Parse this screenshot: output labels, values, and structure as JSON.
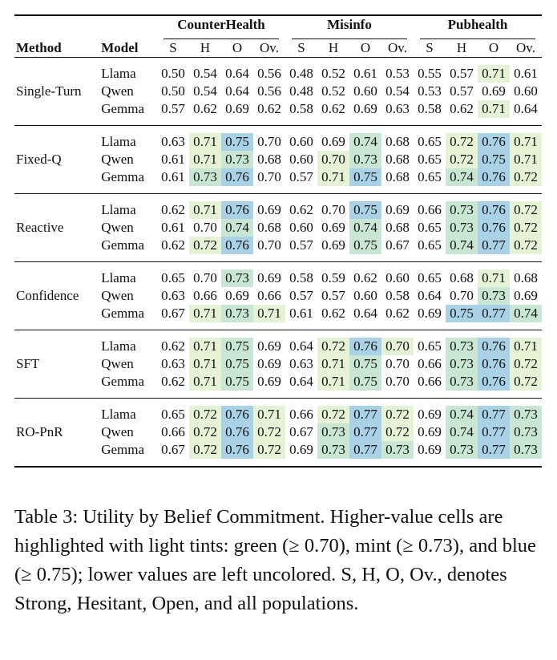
{
  "table": {
    "headers": {
      "method": "Method",
      "model": "Model",
      "datasets": [
        "CounterHealth",
        "Misinfo",
        "Pubhealth"
      ],
      "subcols": [
        "S",
        "H",
        "O",
        "Ov."
      ]
    },
    "groups": [
      {
        "method": "Single-Turn",
        "rows": [
          {
            "model": "Llama",
            "values": [
              "0.50",
              "0.54",
              "0.64",
              "0.56",
              "0.48",
              "0.52",
              "0.61",
              "0.53",
              "0.55",
              "0.57",
              "0.71",
              "0.61"
            ],
            "tints": [
              "",
              "",
              "",
              "",
              "",
              "",
              "",
              "",
              "",
              "",
              "g",
              ""
            ]
          },
          {
            "model": "Qwen",
            "values": [
              "0.50",
              "0.54",
              "0.64",
              "0.56",
              "0.48",
              "0.52",
              "0.60",
              "0.54",
              "0.53",
              "0.57",
              "0.69",
              "0.60"
            ],
            "tints": [
              "",
              "",
              "",
              "",
              "",
              "",
              "",
              "",
              "",
              "",
              "",
              ""
            ]
          },
          {
            "model": "Gemma",
            "values": [
              "0.57",
              "0.62",
              "0.69",
              "0.62",
              "0.58",
              "0.62",
              "0.69",
              "0.63",
              "0.58",
              "0.62",
              "0.71",
              "0.64"
            ],
            "tints": [
              "",
              "",
              "",
              "",
              "",
              "",
              "",
              "",
              "",
              "",
              "g",
              ""
            ]
          }
        ]
      },
      {
        "method": "Fixed-Q",
        "rows": [
          {
            "model": "Llama",
            "values": [
              "0.63",
              "0.71",
              "0.75",
              "0.70",
              "0.60",
              "0.69",
              "0.74",
              "0.68",
              "0.65",
              "0.72",
              "0.76",
              "0.71"
            ],
            "tints": [
              "",
              "g",
              "b",
              "",
              "",
              "",
              "m",
              "",
              "",
              "g",
              "b",
              "g"
            ]
          },
          {
            "model": "Qwen",
            "values": [
              "0.61",
              "0.71",
              "0.73",
              "0.68",
              "0.60",
              "0.70",
              "0.73",
              "0.68",
              "0.65",
              "0.72",
              "0.75",
              "0.71"
            ],
            "tints": [
              "",
              "g",
              "m",
              "",
              "",
              "g",
              "m",
              "",
              "",
              "g",
              "b",
              "g"
            ]
          },
          {
            "model": "Gemma",
            "values": [
              "0.61",
              "0.73",
              "0.76",
              "0.70",
              "0.57",
              "0.71",
              "0.75",
              "0.68",
              "0.65",
              "0.74",
              "0.76",
              "0.72"
            ],
            "tints": [
              "",
              "m",
              "b",
              "",
              "",
              "g",
              "b",
              "",
              "",
              "m",
              "b",
              "g"
            ]
          }
        ]
      },
      {
        "method": "Reactive",
        "rows": [
          {
            "model": "Llama",
            "values": [
              "0.62",
              "0.71",
              "0.76",
              "0.69",
              "0.62",
              "0.70",
              "0.75",
              "0.69",
              "0.66",
              "0.73",
              "0.76",
              "0.72"
            ],
            "tints": [
              "",
              "g",
              "b",
              "",
              "",
              "",
              "b",
              "",
              "",
              "m",
              "b",
              "g"
            ]
          },
          {
            "model": "Qwen",
            "values": [
              "0.61",
              "0.70",
              "0.74",
              "0.68",
              "0.60",
              "0.69",
              "0.74",
              "0.68",
              "0.65",
              "0.73",
              "0.76",
              "0.72"
            ],
            "tints": [
              "",
              "",
              "m",
              "",
              "",
              "",
              "m",
              "",
              "",
              "m",
              "b",
              "g"
            ]
          },
          {
            "model": "Gemma",
            "values": [
              "0.62",
              "0.72",
              "0.76",
              "0.70",
              "0.57",
              "0.69",
              "0.75",
              "0.67",
              "0.65",
              "0.74",
              "0.77",
              "0.72"
            ],
            "tints": [
              "",
              "g",
              "b",
              "",
              "",
              "",
              "m",
              "",
              "",
              "m",
              "b",
              "g"
            ]
          }
        ]
      },
      {
        "method": "Confidence",
        "rows": [
          {
            "model": "Llama",
            "values": [
              "0.65",
              "0.70",
              "0.73",
              "0.69",
              "0.58",
              "0.59",
              "0.62",
              "0.60",
              "0.65",
              "0.68",
              "0.71",
              "0.68"
            ],
            "tints": [
              "",
              "",
              "m",
              "",
              "",
              "",
              "",
              "",
              "",
              "",
              "g",
              ""
            ]
          },
          {
            "model": "Qwen",
            "values": [
              "0.63",
              "0.66",
              "0.69",
              "0.66",
              "0.57",
              "0.57",
              "0.60",
              "0.58",
              "0.64",
              "0.70",
              "0.73",
              "0.69"
            ],
            "tints": [
              "",
              "",
              "",
              "",
              "",
              "",
              "",
              "",
              "",
              "",
              "m",
              ""
            ]
          },
          {
            "model": "Gemma",
            "values": [
              "0.67",
              "0.71",
              "0.73",
              "0.71",
              "0.61",
              "0.62",
              "0.64",
              "0.62",
              "0.69",
              "0.75",
              "0.77",
              "0.74"
            ],
            "tints": [
              "",
              "g",
              "m",
              "g",
              "",
              "",
              "",
              "",
              "",
              "b",
              "b",
              "m"
            ]
          }
        ]
      },
      {
        "method": "SFT",
        "rows": [
          {
            "model": "Llama",
            "values": [
              "0.62",
              "0.71",
              "0.75",
              "0.69",
              "0.64",
              "0.72",
              "0.76",
              "0.70",
              "0.65",
              "0.73",
              "0.76",
              "0.71"
            ],
            "tints": [
              "",
              "g",
              "m",
              "",
              "",
              "g",
              "b",
              "g",
              "",
              "m",
              "b",
              "g"
            ]
          },
          {
            "model": "Qwen",
            "values": [
              "0.63",
              "0.71",
              "0.75",
              "0.69",
              "0.63",
              "0.71",
              "0.75",
              "0.70",
              "0.66",
              "0.73",
              "0.76",
              "0.72"
            ],
            "tints": [
              "",
              "g",
              "m",
              "",
              "",
              "g",
              "m",
              "",
              "",
              "m",
              "b",
              "g"
            ]
          },
          {
            "model": "Gemma",
            "values": [
              "0.62",
              "0.71",
              "0.75",
              "0.69",
              "0.64",
              "0.71",
              "0.75",
              "0.70",
              "0.66",
              "0.73",
              "0.76",
              "0.72"
            ],
            "tints": [
              "",
              "g",
              "m",
              "",
              "",
              "g",
              "m",
              "",
              "",
              "m",
              "b",
              "g"
            ]
          }
        ]
      },
      {
        "method": "RO-PnR",
        "rows": [
          {
            "model": "Llama",
            "values": [
              "0.65",
              "0.72",
              "0.76",
              "0.71",
              "0.66",
              "0.72",
              "0.77",
              "0.72",
              "0.69",
              "0.74",
              "0.77",
              "0.73"
            ],
            "tints": [
              "",
              "g",
              "b",
              "g",
              "",
              "g",
              "b",
              "g",
              "",
              "m",
              "b",
              "m"
            ]
          },
          {
            "model": "Qwen",
            "values": [
              "0.66",
              "0.72",
              "0.76",
              "0.72",
              "0.67",
              "0.73",
              "0.77",
              "0.72",
              "0.69",
              "0.74",
              "0.77",
              "0.73"
            ],
            "tints": [
              "",
              "g",
              "b",
              "g",
              "",
              "m",
              "b",
              "g",
              "",
              "m",
              "b",
              "m"
            ]
          },
          {
            "model": "Gemma",
            "values": [
              "0.67",
              "0.72",
              "0.76",
              "0.72",
              "0.69",
              "0.73",
              "0.77",
              "0.73",
              "0.69",
              "0.73",
              "0.77",
              "0.73"
            ],
            "tints": [
              "",
              "g",
              "b",
              "g",
              "",
              "m",
              "b",
              "m",
              "",
              "m",
              "b",
              "m"
            ]
          }
        ]
      }
    ],
    "tint_colors": {
      "g": "#e4f2d6",
      "m": "#c8e6d3",
      "b": "#a9d2e6"
    }
  },
  "caption": "Table 3: Utility by Belief Commitment. Higher-value cells are highlighted with light tints: green (≥ 0.70), mint (≥ 0.73), and blue (≥ 0.75); lower values are left uncolored. S, H, O, Ov., denotes Strong, Hesitant, Open, and all populations."
}
